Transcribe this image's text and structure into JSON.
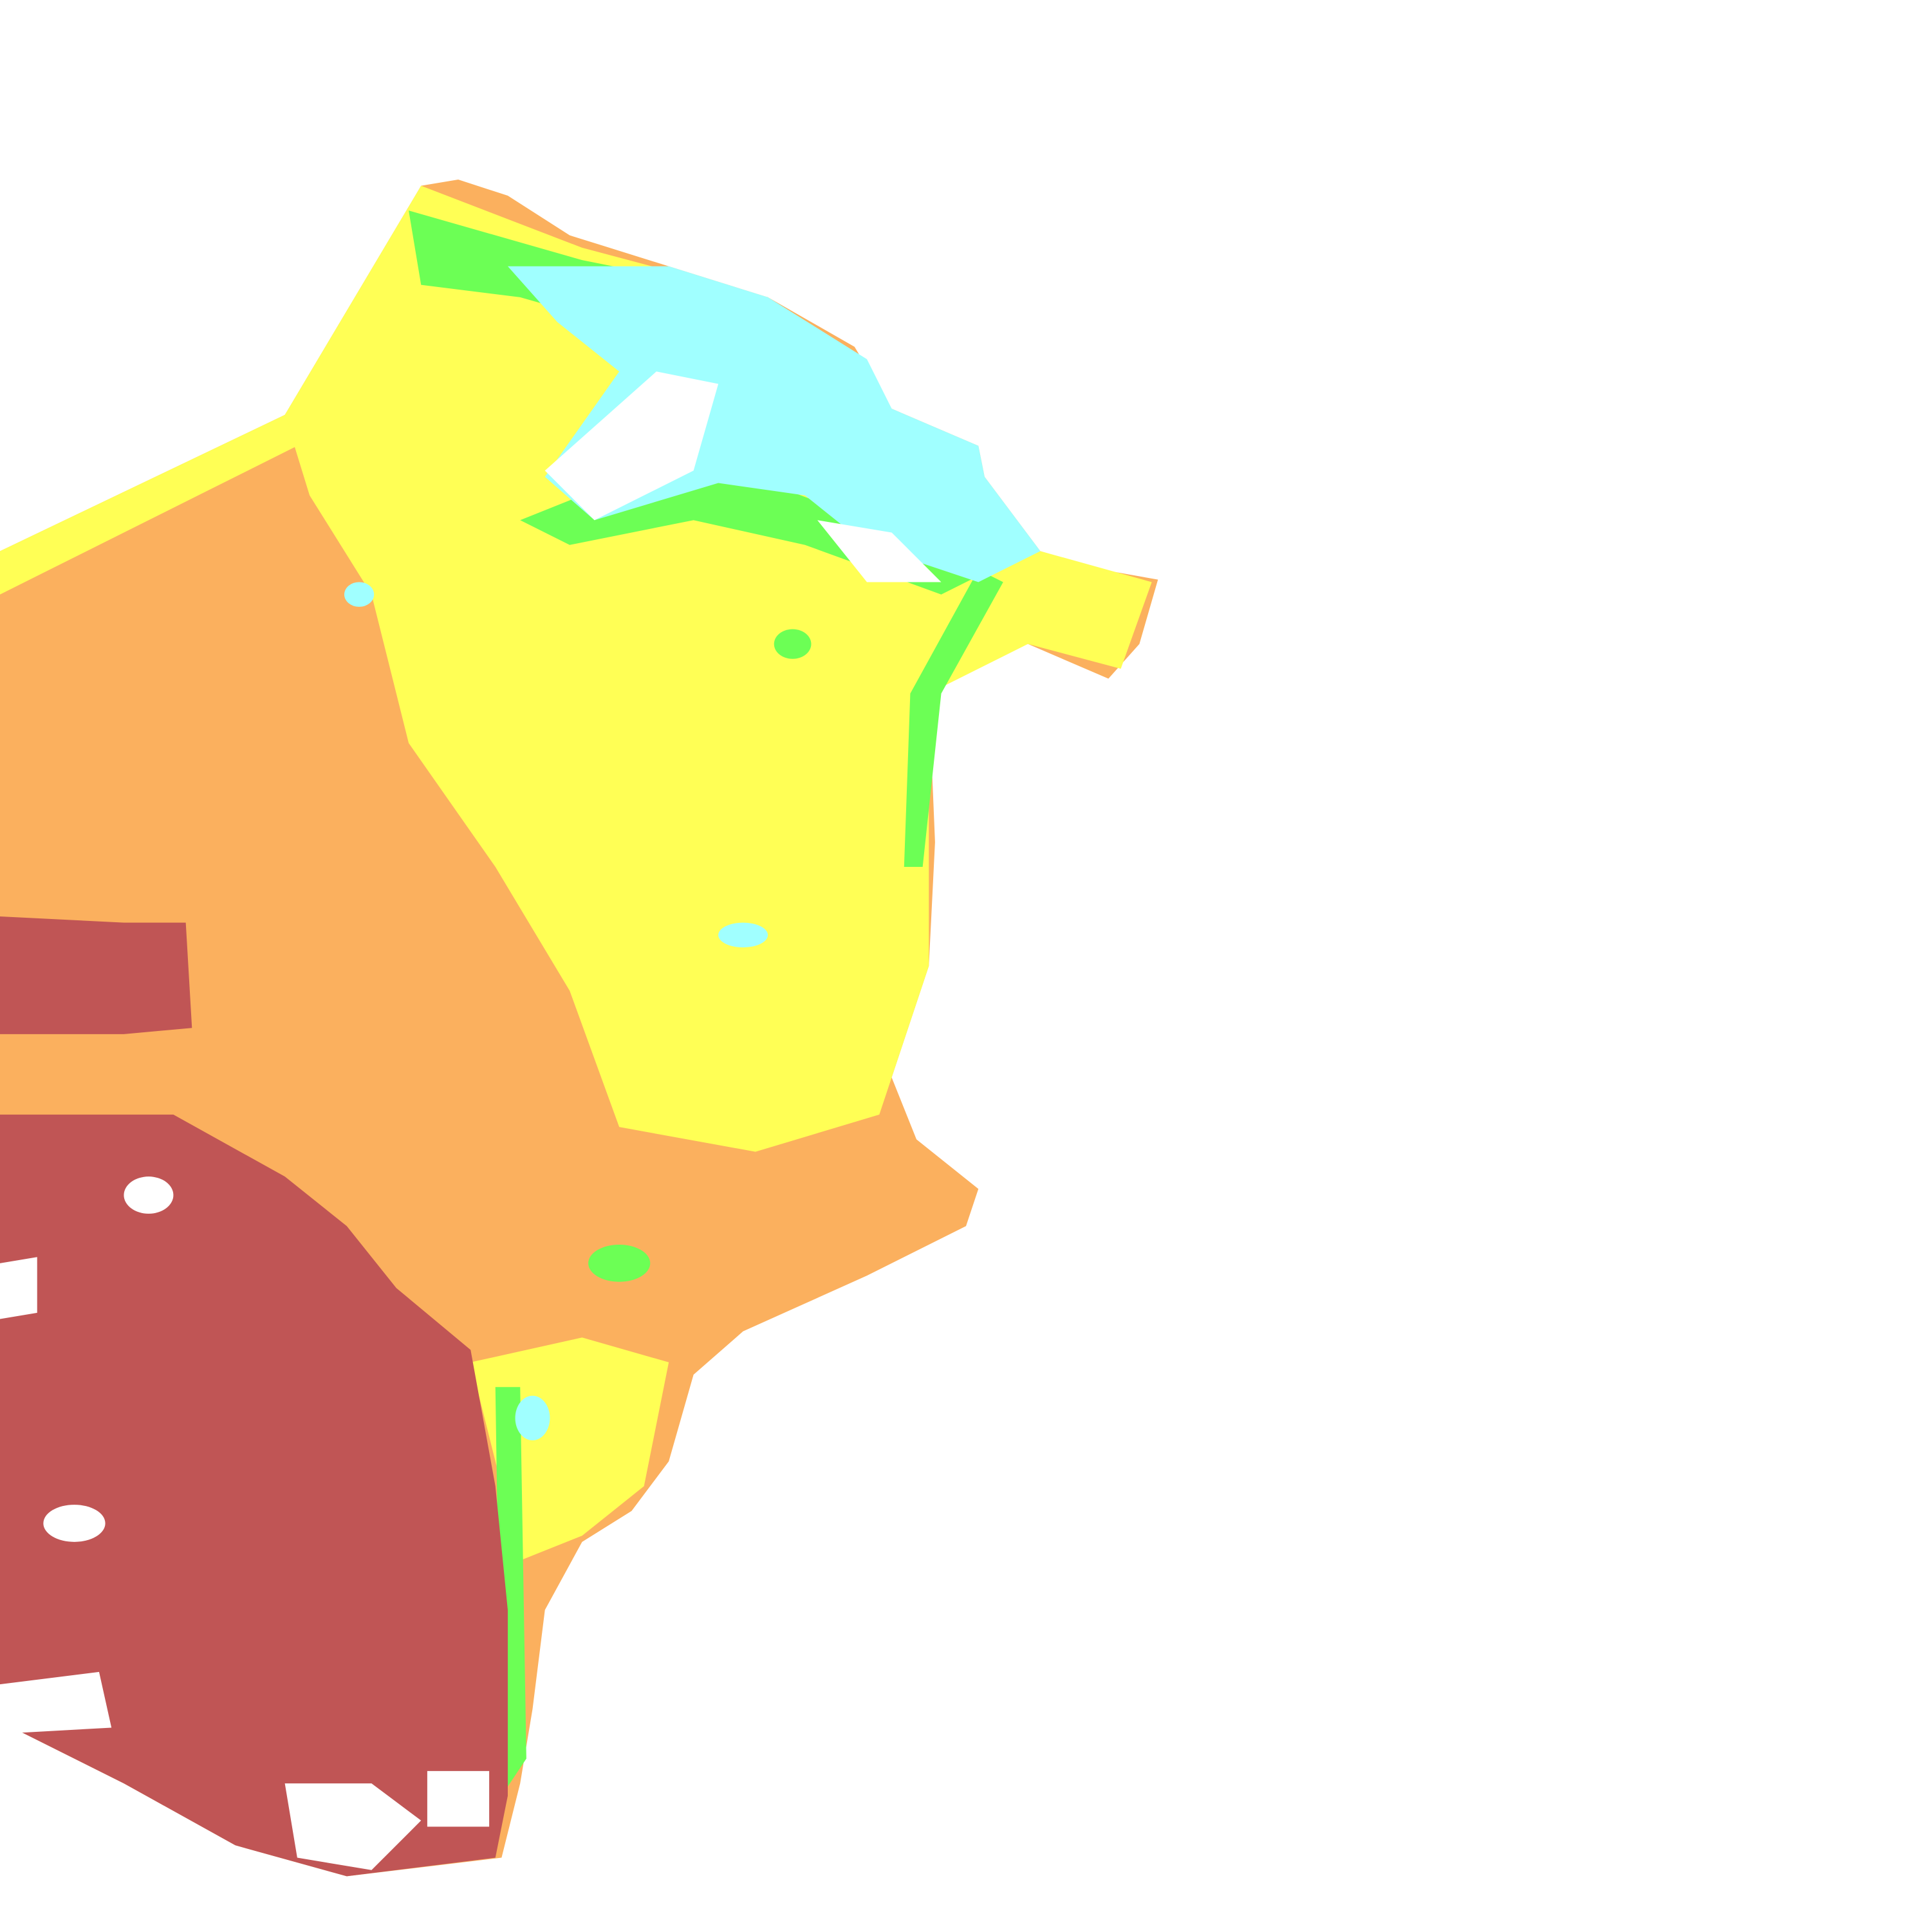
{
  "map": {
    "type": "classified raster",
    "classes": [
      {
        "key": "class-1",
        "color": "#A0FFFF"
      },
      {
        "key": "class-2",
        "color": "#6CFF55"
      },
      {
        "key": "class-3",
        "color": "#FFFF55"
      },
      {
        "key": "class-4",
        "color": "#FBB05E"
      },
      {
        "key": "class-5",
        "color": "#C05555"
      }
    ],
    "background": "#FFFFFF"
  }
}
